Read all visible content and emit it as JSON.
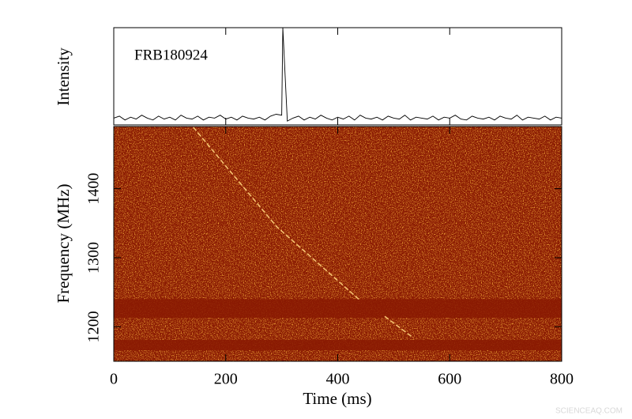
{
  "chart_data": [
    {
      "type": "line",
      "ylabel": "Intensity",
      "annotation": "FRB180924",
      "color": "#000000",
      "xlim": [
        0,
        800
      ],
      "ylim": [
        0,
        1
      ],
      "x": [
        0,
        10,
        20,
        30,
        40,
        50,
        60,
        70,
        80,
        90,
        100,
        110,
        120,
        130,
        140,
        150,
        160,
        170,
        180,
        190,
        200,
        210,
        220,
        230,
        240,
        250,
        260,
        270,
        280,
        290,
        300,
        302,
        310,
        320,
        330,
        340,
        350,
        360,
        370,
        380,
        390,
        400,
        410,
        420,
        430,
        440,
        450,
        460,
        470,
        480,
        490,
        500,
        510,
        520,
        530,
        540,
        550,
        560,
        570,
        580,
        590,
        600,
        610,
        620,
        630,
        640,
        650,
        660,
        670,
        680,
        690,
        700,
        710,
        720,
        730,
        740,
        750,
        760,
        770,
        780,
        790,
        800
      ],
      "values": [
        0.07,
        0.09,
        0.05,
        0.08,
        0.06,
        0.1,
        0.07,
        0.05,
        0.09,
        0.06,
        0.08,
        0.05,
        0.1,
        0.07,
        0.06,
        0.09,
        0.05,
        0.08,
        0.07,
        0.1,
        0.06,
        0.08,
        0.05,
        0.09,
        0.07,
        0.06,
        0.08,
        0.05,
        0.09,
        0.11,
        0.1,
        1.0,
        0.04,
        0.07,
        0.09,
        0.05,
        0.08,
        0.06,
        0.1,
        0.07,
        0.05,
        0.08,
        0.06,
        0.09,
        0.05,
        0.1,
        0.07,
        0.06,
        0.08,
        0.05,
        0.09,
        0.07,
        0.06,
        0.1,
        0.05,
        0.08,
        0.07,
        0.06,
        0.09,
        0.05,
        0.08,
        0.07,
        0.1,
        0.06,
        0.05,
        0.09,
        0.07,
        0.06,
        0.08,
        0.05,
        0.09,
        0.07,
        0.06,
        0.1,
        0.05,
        0.08,
        0.07,
        0.06,
        0.09,
        0.05,
        0.08,
        0.07
      ]
    },
    {
      "type": "heatmap",
      "xlabel": "Time (ms)",
      "ylabel": "Frequency (MHz)",
      "color": "#8a1a02",
      "track_color": "#ffd27a",
      "xlim": [
        0,
        800
      ],
      "ylim": [
        1150,
        1490
      ],
      "xticks": [
        0,
        200,
        400,
        600,
        800
      ],
      "yticks": [
        1200,
        1300,
        1400
      ],
      "masked_bands": [
        [
          1213,
          1240
        ],
        [
          1166,
          1181
        ]
      ],
      "x": [
        142,
        291,
        439,
        462,
        484,
        535
      ],
      "values": [
        1489,
        1345,
        1239,
        null,
        1215,
        1184
      ]
    }
  ],
  "watermark": "SCIENCEAQ.COM"
}
